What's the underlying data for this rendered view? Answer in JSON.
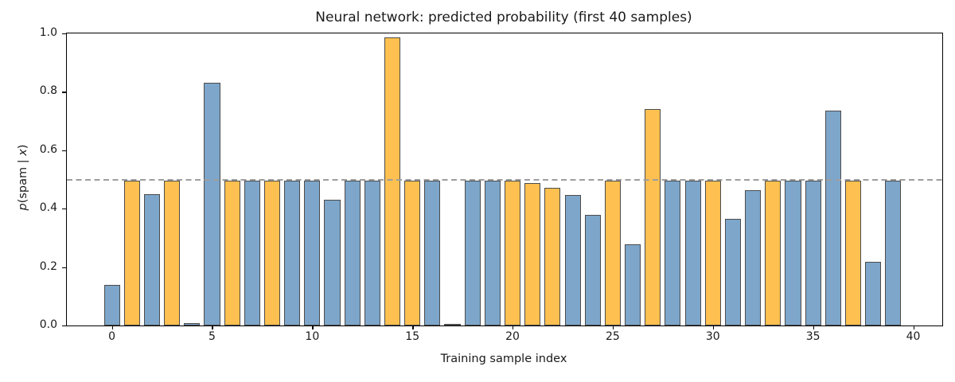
{
  "figure": {
    "ylabel_parts": {
      "p": "p",
      "open": "(spam | ",
      "x": "x",
      "close": ")"
    }
  },
  "chart_data": {
    "type": "bar",
    "title": "Neural network: predicted probability (first 40 samples)",
    "xlabel": "Training sample index",
    "ylabel": "p(spam | x)",
    "x": [
      0,
      1,
      2,
      3,
      4,
      5,
      6,
      7,
      8,
      9,
      10,
      11,
      12,
      13,
      14,
      15,
      16,
      17,
      18,
      19,
      20,
      21,
      22,
      23,
      24,
      25,
      26,
      27,
      28,
      29,
      30,
      31,
      32,
      33,
      34,
      35,
      36,
      37,
      38,
      39
    ],
    "values": [
      0.14,
      0.495,
      0.45,
      0.495,
      0.008,
      0.832,
      0.495,
      0.495,
      0.495,
      0.495,
      0.495,
      0.43,
      0.495,
      0.495,
      0.986,
      0.495,
      0.495,
      0.002,
      0.495,
      0.495,
      0.495,
      0.489,
      0.472,
      0.448,
      0.379,
      0.495,
      0.277,
      0.74,
      0.495,
      0.495,
      0.495,
      0.364,
      0.462,
      0.495,
      0.495,
      0.495,
      0.737,
      0.495,
      0.218,
      0.495
    ],
    "colors": [
      "blue",
      "orange",
      "blue",
      "orange",
      "blue",
      "blue",
      "orange",
      "blue",
      "orange",
      "blue",
      "blue",
      "blue",
      "blue",
      "blue",
      "orange",
      "orange",
      "blue",
      "blue",
      "blue",
      "blue",
      "orange",
      "orange",
      "orange",
      "blue",
      "blue",
      "orange",
      "blue",
      "orange",
      "blue",
      "blue",
      "orange",
      "blue",
      "blue",
      "orange",
      "blue",
      "blue",
      "blue",
      "orange",
      "blue",
      "blue"
    ],
    "palette": {
      "blue": "#7DA6CA",
      "orange": "#FEC050",
      "edge": "#4C4C4C",
      "threshold": "#9e9e9e"
    },
    "threshold_line": {
      "y": 0.5,
      "style": "dashed"
    },
    "bar_width": 0.8,
    "xlim": [
      -2.25,
      41.45
    ],
    "ylim": [
      0,
      1.0
    ],
    "xticks": [
      0,
      5,
      10,
      15,
      20,
      25,
      30,
      35,
      40
    ],
    "yticks": [
      0.0,
      0.2,
      0.4,
      0.6,
      0.8,
      1.0
    ],
    "grid": false,
    "legend": null
  }
}
